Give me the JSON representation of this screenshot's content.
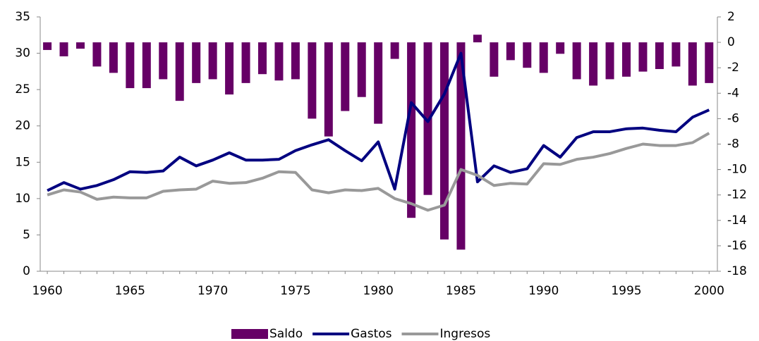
{
  "chart_data": {
    "type": "combo",
    "x": [
      1960,
      1961,
      1962,
      1963,
      1964,
      1965,
      1966,
      1967,
      1968,
      1969,
      1970,
      1971,
      1972,
      1973,
      1974,
      1975,
      1976,
      1977,
      1978,
      1979,
      1980,
      1981,
      1982,
      1983,
      1984,
      1985,
      1986,
      1987,
      1988,
      1989,
      1990,
      1991,
      1992,
      1993,
      1994,
      1995,
      1996,
      1997,
      1998,
      1999,
      2000
    ],
    "xlim": [
      1959.57,
      2000.5
    ],
    "xticks": [
      1960,
      1965,
      1970,
      1975,
      1980,
      1985,
      1990,
      1995,
      2000
    ],
    "ylim": [
      0,
      35
    ],
    "yticks": [
      0,
      5,
      10,
      15,
      20,
      25,
      30,
      35
    ],
    "y2lim": [
      -18,
      2
    ],
    "y2ticks": [
      -18,
      -16,
      -14,
      -12,
      -10,
      -8,
      -6,
      -4,
      -2,
      0,
      2
    ],
    "legend": "bottom",
    "series": [
      {
        "name": "Saldo",
        "type": "bar",
        "axis": "y2",
        "color": "#660066",
        "values": [
          -0.6,
          -1.1,
          -0.5,
          -1.9,
          -2.4,
          -3.6,
          -3.6,
          -2.9,
          -4.6,
          -3.2,
          -2.9,
          -4.1,
          -3.2,
          -2.5,
          -3.0,
          -2.9,
          -6.0,
          -7.4,
          -5.4,
          -4.3,
          -6.4,
          -1.3,
          -13.8,
          -12.0,
          -15.5,
          -16.3,
          0.6,
          -2.7,
          -1.4,
          -2.0,
          -2.4,
          -0.9,
          -2.9,
          -3.4,
          -2.9,
          -2.7,
          -2.3,
          -2.1,
          -1.9,
          -3.4,
          -3.2
        ]
      },
      {
        "name": "Gastos",
        "type": "line",
        "color": "#000080",
        "values": [
          11.1,
          12.2,
          11.3,
          11.8,
          12.6,
          13.7,
          13.6,
          13.8,
          15.7,
          14.5,
          15.3,
          16.3,
          15.3,
          15.3,
          15.4,
          16.6,
          17.4,
          18.1,
          16.6,
          15.2,
          17.8,
          11.3,
          23.2,
          20.6,
          24.4,
          30.0,
          12.3,
          14.5,
          13.6,
          14.1,
          17.3,
          15.7,
          18.4,
          19.2,
          19.2,
          19.6,
          19.7,
          19.4,
          19.2,
          21.2,
          22.2
        ]
      },
      {
        "name": "Ingresos",
        "type": "line",
        "color": "#999999",
        "values": [
          10.5,
          11.2,
          10.9,
          9.9,
          10.2,
          10.1,
          10.1,
          11.0,
          11.2,
          11.3,
          12.4,
          12.1,
          12.2,
          12.8,
          13.7,
          13.6,
          11.2,
          10.8,
          11.2,
          11.1,
          11.4,
          10.0,
          9.3,
          8.4,
          9.1,
          14.0,
          13.2,
          11.8,
          12.1,
          12.0,
          14.8,
          14.7,
          15.4,
          15.7,
          16.2,
          16.9,
          17.5,
          17.3,
          17.3,
          17.7,
          19.0
        ]
      }
    ]
  }
}
